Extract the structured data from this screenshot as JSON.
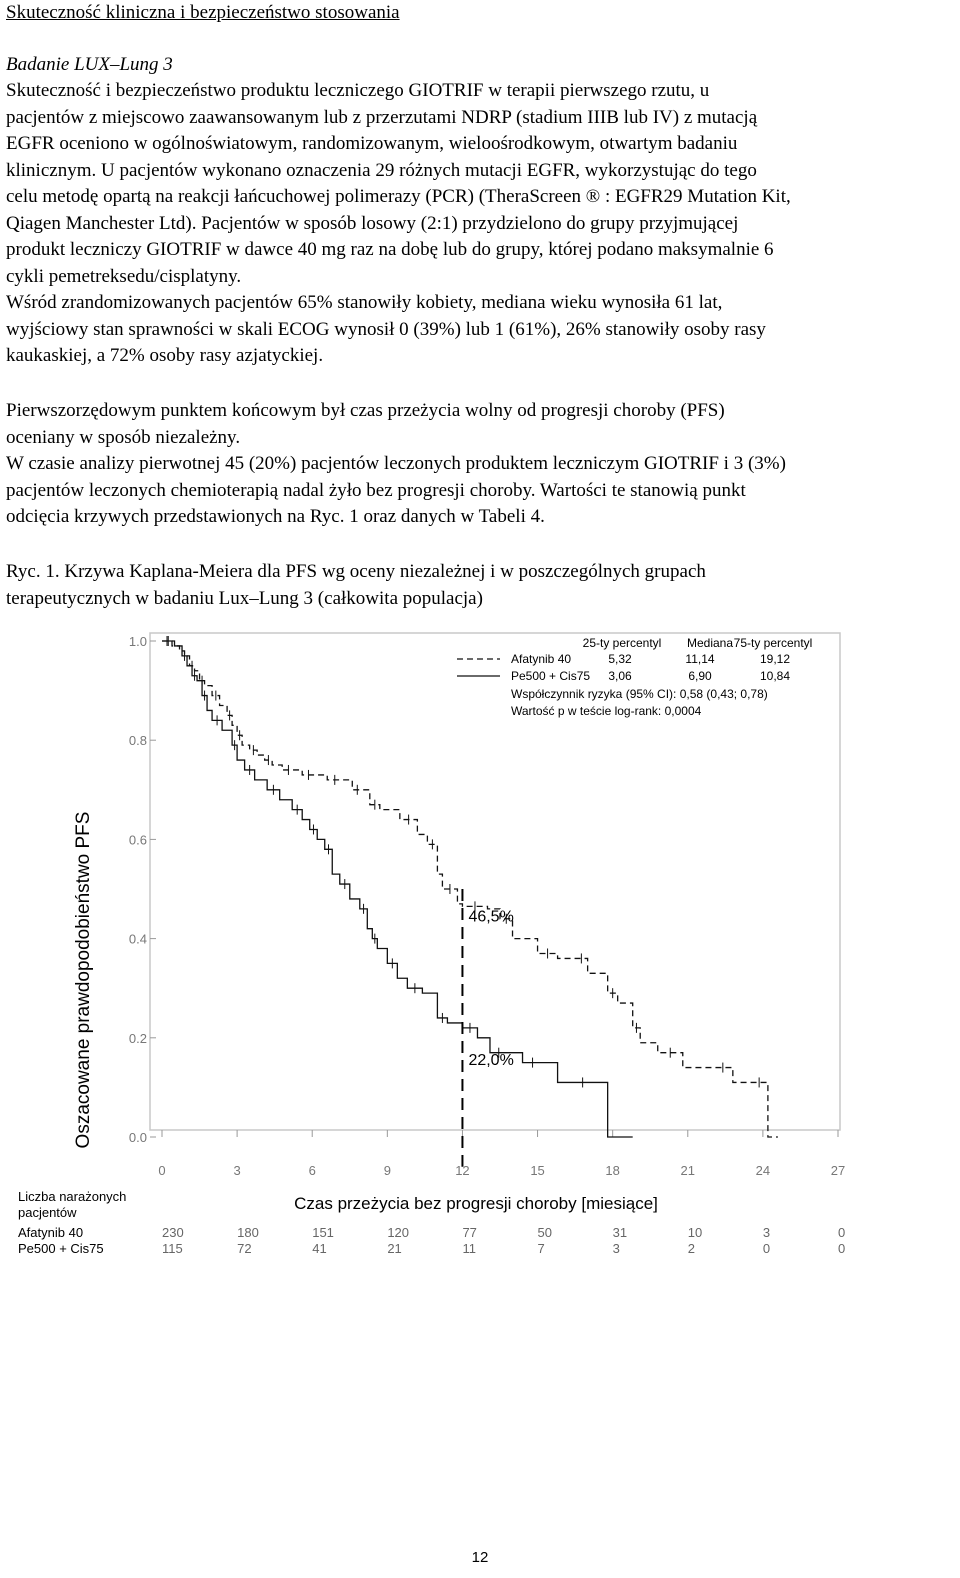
{
  "section_title": "Skuteczność kliniczna i bezpieczeństwo stosowania",
  "study_name": "Badanie LUX–Lung 3",
  "para1_lines": [
    "Skuteczność i bezpieczeństwo produktu leczniczego GIOTRIF w terapii pierwszego rzutu, u",
    "pacjentów z miejscowo zaawansowanym lub z przerzutami NDRP (stadium IIIB lub IV) z mutacją",
    "EGFR oceniono w ogólnoświatowym, randomizowanym, wieloośrodkowym, otwartym badaniu",
    "klinicznym. U pacjentów wykonano oznaczenia 29 różnych mutacji EGFR, wykorzystując do tego",
    "celu metodę opartą na reakcji łańcuchowej polimerazy (PCR) (TheraScreen ® : EGFR29 Mutation Kit,",
    "Qiagen Manchester Ltd). Pacjentów w sposób losowy (2:1) przydzielono do grupy przyjmującej",
    "produkt leczniczy GIOTRIF w dawce 40 mg raz na dobę lub do grupy, której podano maksymalnie 6",
    "cykli pemetreksedu/cisplatyny.",
    "Wśród zrandomizowanych pacjentów 65% stanowiły kobiety, mediana wieku wynosiła 61 lat,",
    "wyjściowy stan sprawności w skali ECOG wynosił 0 (39%) lub 1 (61%), 26% stanowiły osoby rasy",
    "kaukaskiej, a 72% osoby rasy azjatyckiej."
  ],
  "para2_lines": [
    "Pierwszorzędowym punktem końcowym był czas przeżycia wolny od progresji choroby (PFS)",
    "oceniany w sposób niezależny.",
    "W czasie analizy pierwotnej 45 (20%) pacjentów leczonych produktem leczniczym GIOTRIF i 3 (3%)",
    "pacjentów leczonych chemioterapią nadal żyło bez progresji choroby. Wartości te stanowią punkt",
    "odcięcia krzywych przedstawionych na Ryc. 1 oraz danych w Tabeli 4."
  ],
  "figure_caption_lines": [
    "Ryc. 1. Krzywa Kaplana-Meiera dla PFS wg oceny niezależnej i w poszczególnych grupach",
    "terapeutycznych w badaniu Lux–Lung 3 (całkowita populacja)"
  ],
  "chart_data": {
    "type": "line",
    "ylabel": "Oszacowane prawdopodobieństwo PFS",
    "xlabel": "Czas przeżycia bez progresji choroby [miesiące]",
    "xlim": [
      0,
      27
    ],
    "ylim": [
      0,
      1
    ],
    "x_ticks": [
      "0",
      "3",
      "6",
      "9",
      "12",
      "15",
      "18",
      "21",
      "24",
      "27"
    ],
    "y_ticks": [
      "0.0",
      "0.2",
      "0.4",
      "0.6",
      "0.8",
      "1.0"
    ],
    "legend_headers": [
      "25-ty percentyl",
      "Mediana",
      "75-ty percentyl"
    ],
    "series": [
      {
        "name": "Afatynib 40",
        "style": "dashed",
        "p25": "5,32",
        "median": "11,14",
        "p75": "19,12",
        "points": [
          [
            0,
            1.0
          ],
          [
            0.4,
            0.99
          ],
          [
            0.7,
            0.98
          ],
          [
            0.9,
            0.97
          ],
          [
            1.1,
            0.95
          ],
          [
            1.3,
            0.94
          ],
          [
            1.5,
            0.92
          ],
          [
            1.7,
            0.91
          ],
          [
            2.0,
            0.89
          ],
          [
            2.3,
            0.87
          ],
          [
            2.6,
            0.85
          ],
          [
            2.8,
            0.83
          ],
          [
            3.0,
            0.81
          ],
          [
            3.2,
            0.79
          ],
          [
            3.5,
            0.78
          ],
          [
            3.8,
            0.77
          ],
          [
            4.1,
            0.76
          ],
          [
            4.4,
            0.75
          ],
          [
            4.8,
            0.74
          ],
          [
            5.3,
            0.74
          ],
          [
            5.6,
            0.73
          ],
          [
            6.1,
            0.73
          ],
          [
            6.6,
            0.72
          ],
          [
            7.2,
            0.72
          ],
          [
            7.6,
            0.7
          ],
          [
            8.0,
            0.7
          ],
          [
            8.3,
            0.67
          ],
          [
            8.7,
            0.66
          ],
          [
            9.5,
            0.64
          ],
          [
            10.2,
            0.61
          ],
          [
            10.6,
            0.59
          ],
          [
            11.0,
            0.53
          ],
          [
            11.2,
            0.5
          ],
          [
            11.8,
            0.47
          ],
          [
            12.0,
            0.465
          ],
          [
            13.0,
            0.46
          ],
          [
            13.5,
            0.44
          ],
          [
            14.0,
            0.4
          ],
          [
            15.0,
            0.37
          ],
          [
            15.8,
            0.36
          ],
          [
            16.5,
            0.36
          ],
          [
            17.0,
            0.33
          ],
          [
            17.8,
            0.29
          ],
          [
            18.2,
            0.27
          ],
          [
            18.8,
            0.22
          ],
          [
            19.1,
            0.19
          ],
          [
            19.8,
            0.17
          ],
          [
            20.8,
            0.14
          ],
          [
            22.0,
            0.14
          ],
          [
            22.8,
            0.11
          ],
          [
            23.5,
            0.11
          ],
          [
            24.2,
            0.0
          ],
          [
            24.6,
            0.0
          ]
        ]
      },
      {
        "name": "Pe500 + Cis75",
        "style": "solid",
        "p25": "3,06",
        "median": "6,90",
        "p75": "10,84",
        "points": [
          [
            0,
            1.0
          ],
          [
            0.5,
            0.99
          ],
          [
            0.8,
            0.97
          ],
          [
            1.0,
            0.95
          ],
          [
            1.2,
            0.93
          ],
          [
            1.4,
            0.92
          ],
          [
            1.6,
            0.89
          ],
          [
            1.8,
            0.86
          ],
          [
            2.0,
            0.84
          ],
          [
            2.4,
            0.82
          ],
          [
            2.8,
            0.79
          ],
          [
            3.0,
            0.76
          ],
          [
            3.3,
            0.74
          ],
          [
            3.7,
            0.72
          ],
          [
            4.2,
            0.7
          ],
          [
            4.7,
            0.68
          ],
          [
            5.2,
            0.66
          ],
          [
            5.6,
            0.64
          ],
          [
            5.9,
            0.62
          ],
          [
            6.2,
            0.6
          ],
          [
            6.5,
            0.58
          ],
          [
            6.8,
            0.53
          ],
          [
            7.1,
            0.51
          ],
          [
            7.5,
            0.48
          ],
          [
            7.9,
            0.46
          ],
          [
            8.2,
            0.42
          ],
          [
            8.4,
            0.4
          ],
          [
            8.6,
            0.38
          ],
          [
            9.0,
            0.35
          ],
          [
            9.4,
            0.32
          ],
          [
            9.8,
            0.3
          ],
          [
            10.4,
            0.29
          ],
          [
            11.0,
            0.24
          ],
          [
            11.4,
            0.23
          ],
          [
            12.0,
            0.22
          ],
          [
            12.6,
            0.2
          ],
          [
            13.1,
            0.17
          ],
          [
            13.8,
            0.17
          ],
          [
            14.4,
            0.15
          ],
          [
            15.2,
            0.15
          ],
          [
            15.8,
            0.11
          ],
          [
            17.8,
            0.11
          ],
          [
            17.8,
            0.0
          ],
          [
            18.8,
            0.0
          ]
        ]
      }
    ],
    "hazard_ratio_text": "Współczynnik ryzyka (95% CI): 0,58 (0,43; 0,78)",
    "p_value_text": "Wartość p w teście log-rank: 0,0004",
    "annotations": [
      {
        "text": "46,5%",
        "x": 12,
        "y": 0.465
      },
      {
        "text": "22,0%",
        "x": 12,
        "y": 0.22
      }
    ],
    "cutoff_x": 12,
    "risk_table": {
      "title": "Liczba narażonych pacjentów",
      "rows": [
        {
          "name": "Afatynib 40",
          "values": [
            "230",
            "180",
            "151",
            "120",
            "77",
            "50",
            "31",
            "10",
            "3",
            "0"
          ]
        },
        {
          "name": "Pe500 + Cis75",
          "values": [
            "115",
            "72",
            "41",
            "21",
            "11",
            "7",
            "3",
            "2",
            "0",
            "0"
          ]
        }
      ]
    }
  },
  "page_number": "12"
}
